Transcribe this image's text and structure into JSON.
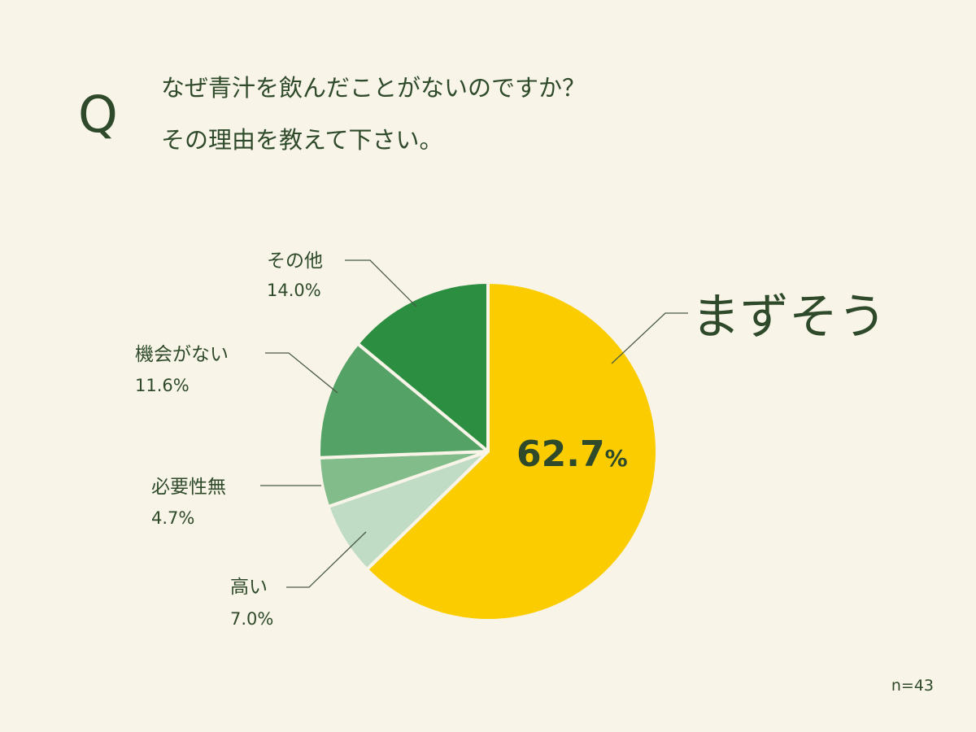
{
  "question": {
    "mark": "Q",
    "line1": "なぜ青汁を飲んだことがないのですか？",
    "line2": "その理由を教えて下さい。"
  },
  "sample_size": "n=43",
  "colors": {
    "background": "#f8f4e7",
    "text": "#2e4a2a",
    "leader_line": "#4a5a44",
    "slice_border": "#f8f4e7"
  },
  "chart_data": {
    "type": "pie",
    "start_angle_deg": 0,
    "direction": "clockwise",
    "slices": [
      {
        "label": "まずそう",
        "value": 62.7,
        "value_text": "62.7",
        "unit": "%",
        "color": "#fbcd00"
      },
      {
        "label": "高い",
        "value": 7.0,
        "value_text": "7.0%",
        "color": "#c0dcc4"
      },
      {
        "label": "必要性無",
        "value": 4.7,
        "value_text": "4.7%",
        "color": "#82bc8a"
      },
      {
        "label": "機会がない",
        "value": 11.6,
        "value_text": "11.6%",
        "color": "#55a266"
      },
      {
        "label": "その他",
        "value": 14.0,
        "value_text": "14.0%",
        "color": "#2b8e40"
      }
    ]
  }
}
